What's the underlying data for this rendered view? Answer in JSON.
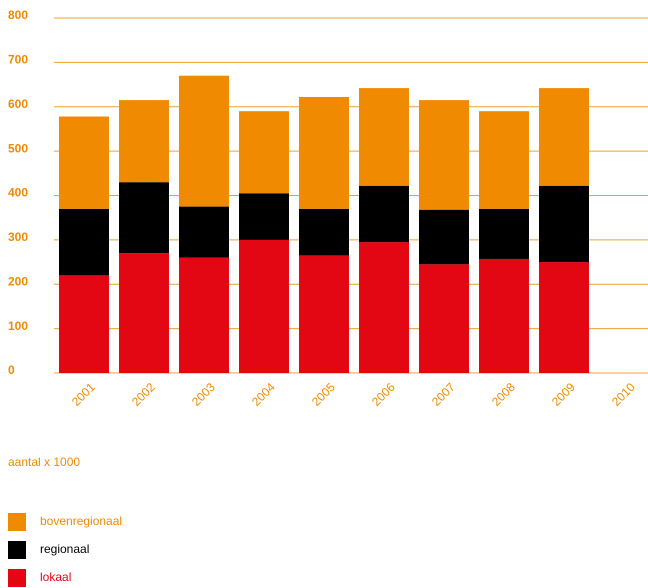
{
  "chart_data": {
    "type": "stacked_bar",
    "y_label": "aantal x 1000",
    "categories": [
      "2001",
      "2002",
      "2003",
      "2004",
      "2005",
      "2006",
      "2007",
      "2008",
      "2009",
      "2010"
    ],
    "series": [
      {
        "name": "lokaal",
        "color": "#e30613",
        "values": [
          220,
          270,
          260,
          300,
          265,
          295,
          245,
          257,
          250,
          null
        ]
      },
      {
        "name": "regionaal",
        "color": "#000000",
        "values": [
          150,
          160,
          115,
          105,
          105,
          127,
          123,
          113,
          172,
          null
        ]
      },
      {
        "name": "bovenregionaal",
        "color": "#f08a00",
        "values": [
          208,
          185,
          295,
          185,
          252,
          220,
          247,
          220,
          220,
          null
        ]
      }
    ],
    "ylim": [
      0,
      800
    ],
    "yticks": [
      0,
      100,
      200,
      300,
      400,
      500,
      600,
      700,
      800
    ],
    "grid": true
  }
}
